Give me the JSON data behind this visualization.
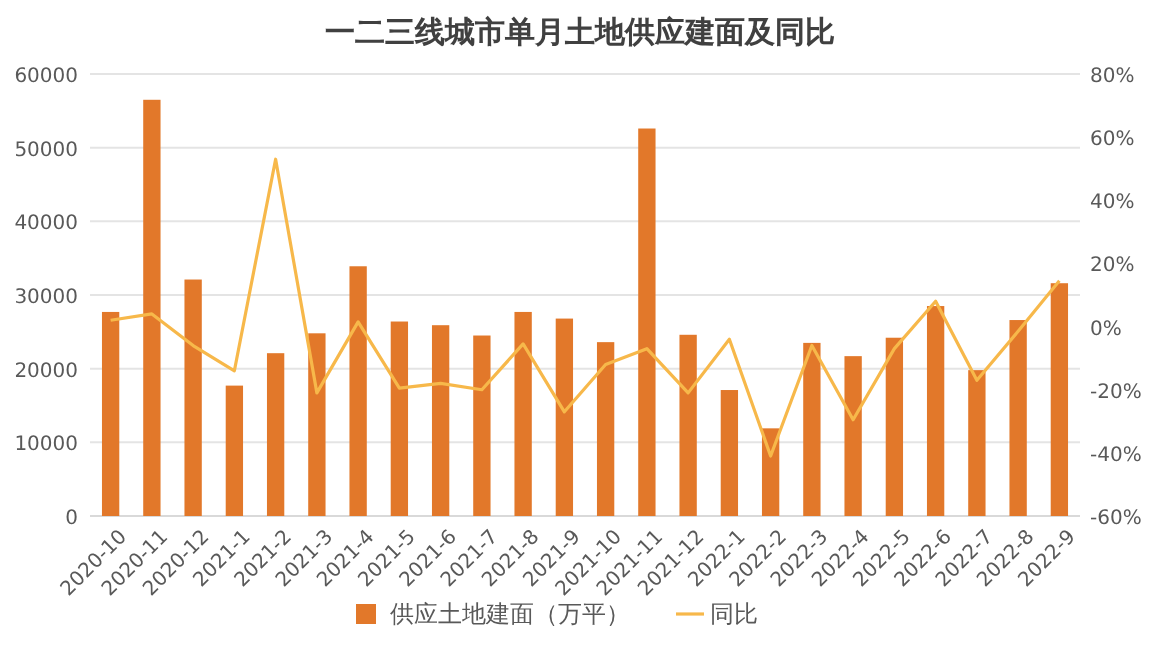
{
  "chart_data": {
    "type": "bar",
    "title": "一二三线城市单月土地供应建面及同比",
    "categories": [
      "2020-10",
      "2020-11",
      "2020-12",
      "2021-1",
      "2021-2",
      "2021-3",
      "2021-4",
      "2021-5",
      "2021-6",
      "2021-7",
      "2021-8",
      "2021-9",
      "2021-10",
      "2021-11",
      "2021-12",
      "2022-1",
      "2022-2",
      "2022-3",
      "2022-4",
      "2022-5",
      "2022-6",
      "2022-7",
      "2022-8",
      "2022-9"
    ],
    "series": [
      {
        "name": "供应土地建面（万平）",
        "color": "#e2782a",
        "values": [
          27700,
          56500,
          32100,
          17700,
          22100,
          24800,
          33900,
          26400,
          25900,
          24500,
          27700,
          26800,
          23600,
          52600,
          24600,
          17100,
          11900,
          23500,
          21700,
          24200,
          28500,
          19800,
          26600,
          31600
        ]
      },
      {
        "name": "同比",
        "type": "line",
        "axis": "y2",
        "color": "#f7b84a",
        "values": [
          2,
          4,
          -6,
          -14,
          53,
          -21,
          1.5,
          -19.5,
          -18,
          -20,
          -5.5,
          -27,
          -12,
          -7,
          -21,
          -4,
          -41,
          -6,
          -29.5,
          -7,
          8,
          -17,
          -1.5,
          14.5
        ]
      }
    ],
    "ylim": [
      0,
      60000
    ],
    "yticks": [
      0,
      10000,
      20000,
      30000,
      40000,
      50000,
      60000
    ],
    "y2lim": [
      -60,
      80
    ],
    "y2ticks": [
      {
        "value": -60,
        "label": "-60%"
      },
      {
        "value": -40,
        "label": "-40%"
      },
      {
        "value": -20,
        "label": "-20%"
      },
      {
        "value": 0,
        "label": "0%"
      },
      {
        "value": 20,
        "label": "20%"
      },
      {
        "value": 40,
        "label": "40%"
      },
      {
        "value": 60,
        "label": "60%"
      },
      {
        "value": 80,
        "label": "80%"
      }
    ],
    "grid": "y",
    "legend": "bottom"
  }
}
